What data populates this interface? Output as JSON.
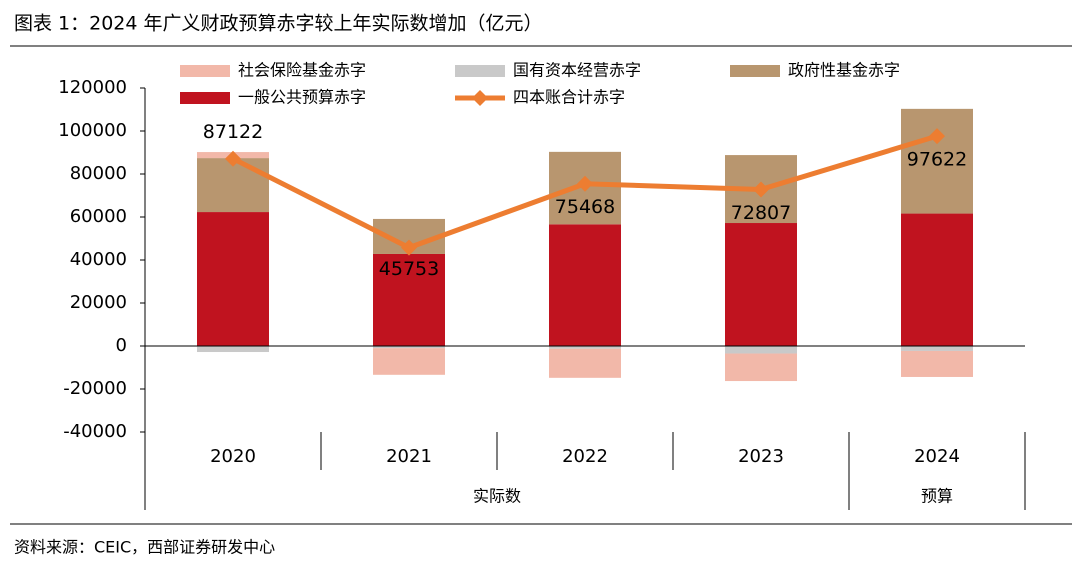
{
  "chart_data": {
    "type": "bar",
    "title": "图表 1：2024 年广义财政预算赤字较上年实际数增加（亿元）",
    "source": "资料来源：CEIC，西部证券研发中心",
    "categories": [
      "2020",
      "2021",
      "2022",
      "2023",
      "2024"
    ],
    "groups": [
      {
        "name": "实际数",
        "count": 4
      },
      {
        "name": "预算",
        "count": 1
      }
    ],
    "series": [
      {
        "name": "社会保险基金赤字",
        "color": "#f2b8a9",
        "values": [
          2800,
          -12400,
          -13500,
          -12800,
          -12100
        ]
      },
      {
        "name": "国有资本经营赤字",
        "color": "#c9c9c9",
        "values": [
          -2800,
          -1000,
          -1300,
          -3500,
          -2300
        ]
      },
      {
        "name": "政府性基金赤字",
        "color": "#b8966f",
        "values": [
          25100,
          16300,
          33700,
          31600,
          48700
        ]
      },
      {
        "name": "一般公共预算赤字",
        "color": "#c0131f",
        "values": [
          62300,
          42800,
          56600,
          57200,
          61600
        ]
      },
      {
        "name": "四本账合计赤字",
        "color": "#ed7d31",
        "type": "line",
        "values": [
          87122,
          45753,
          75468,
          72807,
          97622
        ]
      }
    ],
    "ylim": [
      -40000,
      120000
    ],
    "yticks": [
      -40000,
      -20000,
      0,
      20000,
      40000,
      60000,
      80000,
      100000,
      120000
    ]
  }
}
